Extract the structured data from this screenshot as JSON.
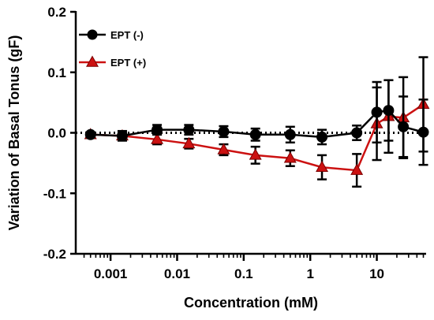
{
  "chart_data": {
    "type": "line",
    "xlabel": "Concentration (mM)",
    "ylabel": "Variation of Basal Tonus (gF)",
    "xscale": "log",
    "xlim": [
      0.0003,
      55
    ],
    "ylim": [
      -0.2,
      0.2
    ],
    "x_tick_labels": [
      "0.001",
      "0.01",
      "0.1",
      "1",
      "10"
    ],
    "x_tick_values": [
      0.001,
      0.01,
      0.1,
      1,
      10
    ],
    "y_tick_labels": [
      "0.2",
      "0.1",
      "0.0",
      "-0.1",
      "-0.2"
    ],
    "y_tick_values": [
      0.2,
      0.1,
      0.0,
      -0.1,
      -0.2
    ],
    "reference_line": {
      "y": 0,
      "style": "dotted"
    },
    "legend_placement": "top-left",
    "series": [
      {
        "name": "EPT (-)",
        "color": "#000000",
        "marker": "circle",
        "x": [
          0.0005,
          0.0015,
          0.005,
          0.015,
          0.05,
          0.15,
          0.5,
          1.5,
          5,
          10,
          15,
          25,
          50
        ],
        "y": [
          -0.003,
          -0.005,
          0.005,
          0.005,
          0.002,
          -0.003,
          -0.003,
          -0.007,
          0.0,
          0.034,
          0.037,
          0.01,
          0.001
        ],
        "error": [
          0.003,
          0.008,
          0.008,
          0.008,
          0.009,
          0.01,
          0.013,
          0.012,
          0.012,
          0.05,
          0.05,
          0.05,
          0.054
        ]
      },
      {
        "name": "EPT (+)",
        "color": "#cc1111",
        "marker": "triangle",
        "x": [
          0.0005,
          0.0015,
          0.005,
          0.015,
          0.05,
          0.15,
          0.5,
          1.5,
          5,
          10,
          15,
          25,
          50
        ],
        "y": [
          -0.003,
          -0.005,
          -0.011,
          -0.018,
          -0.028,
          -0.037,
          -0.042,
          -0.057,
          -0.062,
          0.015,
          0.027,
          0.025,
          0.047
        ],
        "error": [
          0.004,
          0.005,
          0.008,
          0.008,
          0.009,
          0.014,
          0.013,
          0.02,
          0.027,
          0.06,
          0.06,
          0.067,
          0.078
        ]
      }
    ]
  }
}
